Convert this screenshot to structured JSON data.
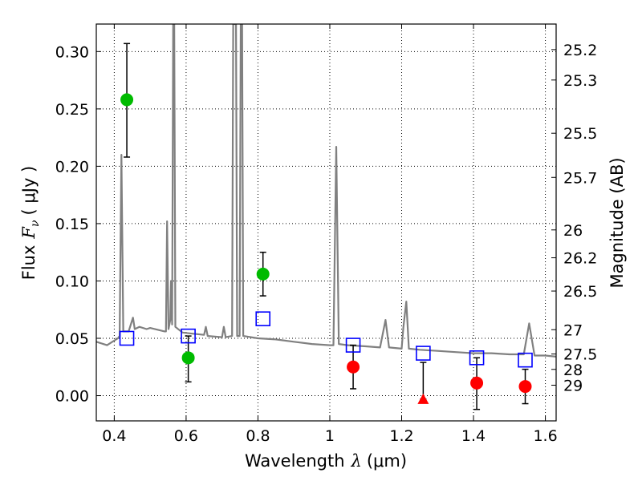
{
  "chart_data": {
    "type": "scatter",
    "xlabel_text": "Wavelength",
    "xlabel_symbol": "λ",
    "xlabel_unit": "(μm)",
    "ylabel_text": "Flux",
    "ylabel_symbol": "F",
    "ylabel_subscript": "ν",
    "ylabel_unit": "( μJy )",
    "y2label": "Magnitude (AB)",
    "xlim": [
      0.35,
      1.63
    ],
    "ylim": [
      -0.022,
      0.324
    ],
    "grid": true,
    "x_ticks": [
      {
        "value": 0.4,
        "label": "0.4"
      },
      {
        "value": 0.6,
        "label": "0.6"
      },
      {
        "value": 0.8,
        "label": "0.8"
      },
      {
        "value": 1.0,
        "label": "1"
      },
      {
        "value": 1.2,
        "label": "1.2"
      },
      {
        "value": 1.4,
        "label": "1.4"
      },
      {
        "value": 1.6,
        "label": "1.6"
      }
    ],
    "y_ticks": [
      {
        "value": 0.0,
        "label": "0.00"
      },
      {
        "value": 0.05,
        "label": "0.05"
      },
      {
        "value": 0.1,
        "label": "0.10"
      },
      {
        "value": 0.15,
        "label": "0.15"
      },
      {
        "value": 0.2,
        "label": "0.20"
      },
      {
        "value": 0.25,
        "label": "0.25"
      },
      {
        "value": 0.3,
        "label": "0.30"
      }
    ],
    "y2_ticks": [
      {
        "flux": 0.3017,
        "label": "25.2"
      },
      {
        "flux": 0.2752,
        "label": "25.3"
      },
      {
        "flux": 0.2288,
        "label": "25.5"
      },
      {
        "flux": 0.1903,
        "label": "25.7"
      },
      {
        "flux": 0.1445,
        "label": "26"
      },
      {
        "flux": 0.1202,
        "label": "26.2"
      },
      {
        "flux": 0.0912,
        "label": "26.5"
      },
      {
        "flux": 0.0575,
        "label": "27"
      },
      {
        "flux": 0.0363,
        "label": "27.5"
      },
      {
        "flux": 0.0229,
        "label": "28"
      },
      {
        "flux": 0.0091,
        "label": "29"
      }
    ],
    "series": [
      {
        "name": "detections (green)",
        "color": "#00bb00",
        "points": [
          {
            "x": 0.435,
            "y": 0.258,
            "ylo": 0.208,
            "yhi": 0.307
          },
          {
            "x": 0.606,
            "y": 0.033,
            "ylo": 0.012,
            "yhi": 0.052
          },
          {
            "x": 0.814,
            "y": 0.106,
            "ylo": 0.087,
            "yhi": 0.125
          }
        ]
      },
      {
        "name": "detections (red)",
        "color": "#ff0000",
        "points": [
          {
            "x": 1.065,
            "y": 0.025,
            "ylo": 0.006,
            "yhi": 0.044
          },
          {
            "x": 1.409,
            "y": 0.011,
            "ylo": -0.012,
            "yhi": 0.033
          },
          {
            "x": 1.544,
            "y": 0.008,
            "ylo": -0.007,
            "yhi": 0.023
          }
        ]
      },
      {
        "name": "upper limit (red)",
        "color": "#ff0000",
        "marker": "triangle",
        "points": [
          {
            "x": 1.26,
            "y": -0.003,
            "ylo": -0.003,
            "yhi": 0.029
          }
        ]
      },
      {
        "name": "model photometry (blue squares)",
        "color": "#0000ff",
        "marker": "square-open",
        "points": [
          {
            "x": 0.435,
            "y": 0.05
          },
          {
            "x": 0.606,
            "y": 0.052
          },
          {
            "x": 0.814,
            "y": 0.067
          },
          {
            "x": 1.065,
            "y": 0.044
          },
          {
            "x": 1.26,
            "y": 0.037
          },
          {
            "x": 1.409,
            "y": 0.033
          },
          {
            "x": 1.544,
            "y": 0.031
          }
        ]
      }
    ],
    "model_spectrum": {
      "name": "SED model",
      "color": "#808080",
      "points": [
        [
          0.35,
          0.047
        ],
        [
          0.38,
          0.044
        ],
        [
          0.41,
          0.05
        ],
        [
          0.415,
          0.052
        ],
        [
          0.42,
          0.21
        ],
        [
          0.425,
          0.056
        ],
        [
          0.44,
          0.056
        ],
        [
          0.452,
          0.068
        ],
        [
          0.457,
          0.058
        ],
        [
          0.47,
          0.06
        ],
        [
          0.49,
          0.058
        ],
        [
          0.5,
          0.059
        ],
        [
          0.54,
          0.056
        ],
        [
          0.544,
          0.056
        ],
        [
          0.547,
          0.152
        ],
        [
          0.551,
          0.058
        ],
        [
          0.556,
          0.066
        ],
        [
          0.558,
          0.1
        ],
        [
          0.561,
          0.062
        ],
        [
          0.564,
          0.324
        ],
        [
          0.567,
          0.324
        ],
        [
          0.57,
          0.06
        ],
        [
          0.59,
          0.055
        ],
        [
          0.62,
          0.054
        ],
        [
          0.65,
          0.053
        ],
        [
          0.655,
          0.06
        ],
        [
          0.66,
          0.052
        ],
        [
          0.7,
          0.051
        ],
        [
          0.705,
          0.06
        ],
        [
          0.71,
          0.051
        ],
        [
          0.728,
          0.052
        ],
        [
          0.731,
          0.324
        ],
        [
          0.739,
          0.324
        ],
        [
          0.742,
          0.052
        ],
        [
          0.749,
          0.052
        ],
        [
          0.752,
          0.324
        ],
        [
          0.756,
          0.324
        ],
        [
          0.759,
          0.052
        ],
        [
          0.8,
          0.05
        ],
        [
          0.85,
          0.049
        ],
        [
          0.9,
          0.047
        ],
        [
          0.95,
          0.045
        ],
        [
          1.0,
          0.044
        ],
        [
          1.01,
          0.044
        ],
        [
          1.018,
          0.217
        ],
        [
          1.025,
          0.045
        ],
        [
          1.05,
          0.044
        ],
        [
          1.1,
          0.043
        ],
        [
          1.14,
          0.042
        ],
        [
          1.155,
          0.066
        ],
        [
          1.165,
          0.042
        ],
        [
          1.2,
          0.041
        ],
        [
          1.205,
          0.06
        ],
        [
          1.213,
          0.082
        ],
        [
          1.22,
          0.041
        ],
        [
          1.25,
          0.04
        ],
        [
          1.3,
          0.039
        ],
        [
          1.35,
          0.038
        ],
        [
          1.4,
          0.037
        ],
        [
          1.45,
          0.037
        ],
        [
          1.5,
          0.036
        ],
        [
          1.54,
          0.036
        ],
        [
          1.555,
          0.063
        ],
        [
          1.57,
          0.035
        ],
        [
          1.6,
          0.035
        ],
        [
          1.63,
          0.034
        ]
      ]
    }
  }
}
